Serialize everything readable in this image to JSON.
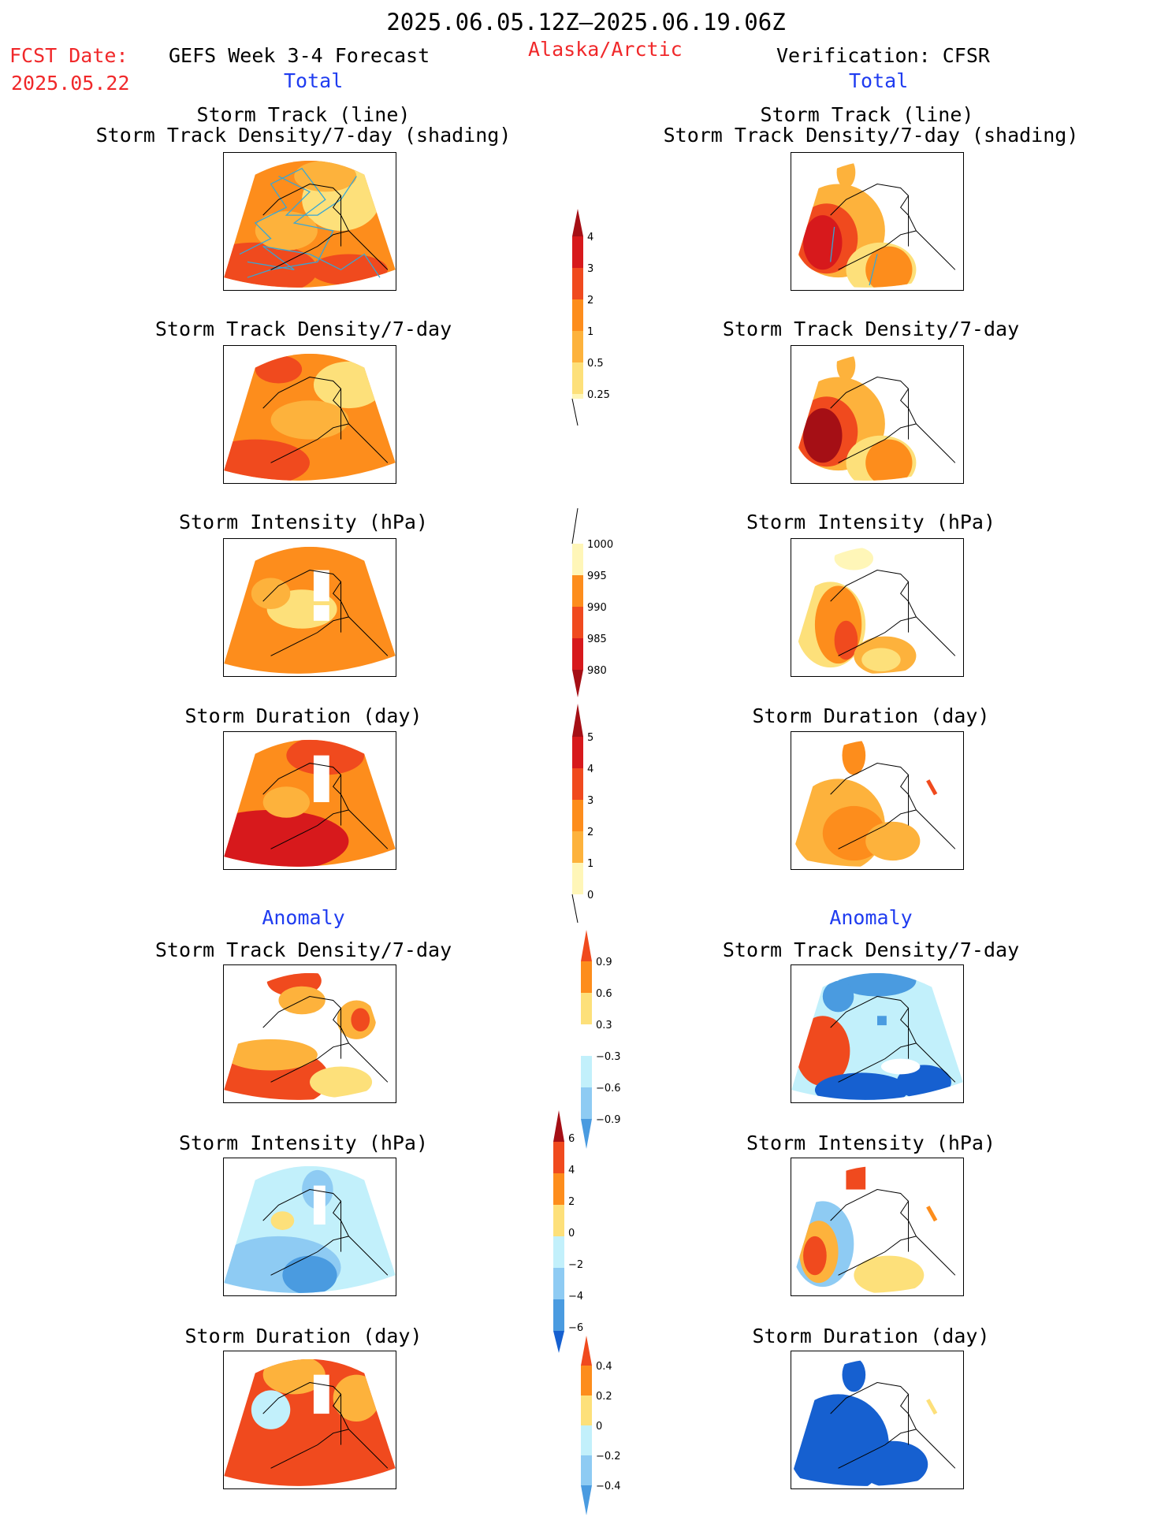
{
  "header": {
    "date_range": "2025.06.05.12Z–2025.06.19.06Z",
    "fcst_label": "FCST Date:",
    "fcst_date": "2025.05.22",
    "left_title": "GEFS Week 3-4 Forecast",
    "region": "Alaska/Arctic",
    "right_title": "Verification: CFSR",
    "total_left": "Total",
    "total_right": "Total",
    "anomaly_left": "Anomaly",
    "anomaly_right": "Anomaly"
  },
  "panel_titles": {
    "track_line": "Storm Track (line)",
    "track_shading": "Storm Track Density/7-day (shading)",
    "density": "Storm Track Density/7-day",
    "intensity": "Storm Intensity (hPa)",
    "duration": "Storm Duration (day)"
  },
  "colors": {
    "dark_red": "#a50f15",
    "red": "#d7191c",
    "red_orange": "#f04a1e",
    "orange": "#fd8d1c",
    "light_orange": "#fdb23c",
    "yellow": "#fde07a",
    "pale_yellow": "#fff6b8",
    "pale_blue": "#c2f0fb",
    "light_blue": "#8ecbf3",
    "mid_blue": "#4a9be0",
    "dark_blue": "#1660d0",
    "track_line": "#36a6d6"
  },
  "colorbars": {
    "density_total": {
      "labels": [
        "4",
        "3",
        "2",
        "1",
        "0.5",
        "0.25"
      ]
    },
    "intensity_total": {
      "labels": [
        "1000",
        "995",
        "990",
        "985",
        "980"
      ]
    },
    "duration_total": {
      "labels": [
        "5",
        "4",
        "3",
        "2",
        "1",
        "0"
      ]
    },
    "density_anom": {
      "labels": [
        "0.9",
        "0.6",
        "0.3",
        "−0.3",
        "−0.6",
        "−0.9"
      ]
    },
    "intensity_anom": {
      "labels": [
        "6",
        "4",
        "2",
        "0",
        "−2",
        "−4",
        "−6"
      ]
    },
    "duration_anom": {
      "labels": [
        "0.4",
        "0.2",
        "0",
        "−0.2",
        "−0.4"
      ]
    }
  },
  "icons": {
    "map": "alaska-map-icon"
  }
}
